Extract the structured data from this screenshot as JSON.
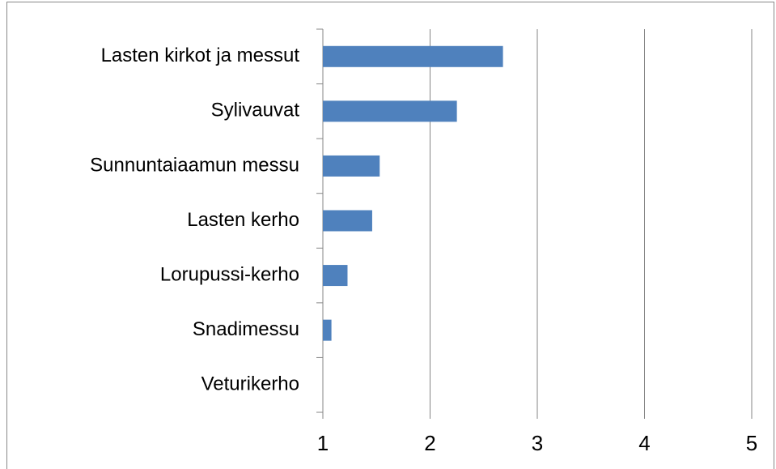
{
  "chart_data": {
    "type": "bar",
    "orientation": "horizontal",
    "categories": [
      "Lasten kirkot ja messut",
      "Sylivauvat",
      "Sunnuntaiaamun messu",
      "Lasten kerho",
      "Lorupussi-kerho",
      "Snadimessu",
      "Veturikerho"
    ],
    "values": [
      2.68,
      2.25,
      1.53,
      1.46,
      1.23,
      1.08,
      1
    ],
    "color": "#4f81bd",
    "xlim": [
      1,
      5
    ],
    "xticks": [
      1,
      2,
      3,
      4,
      5
    ],
    "grid": true
  }
}
